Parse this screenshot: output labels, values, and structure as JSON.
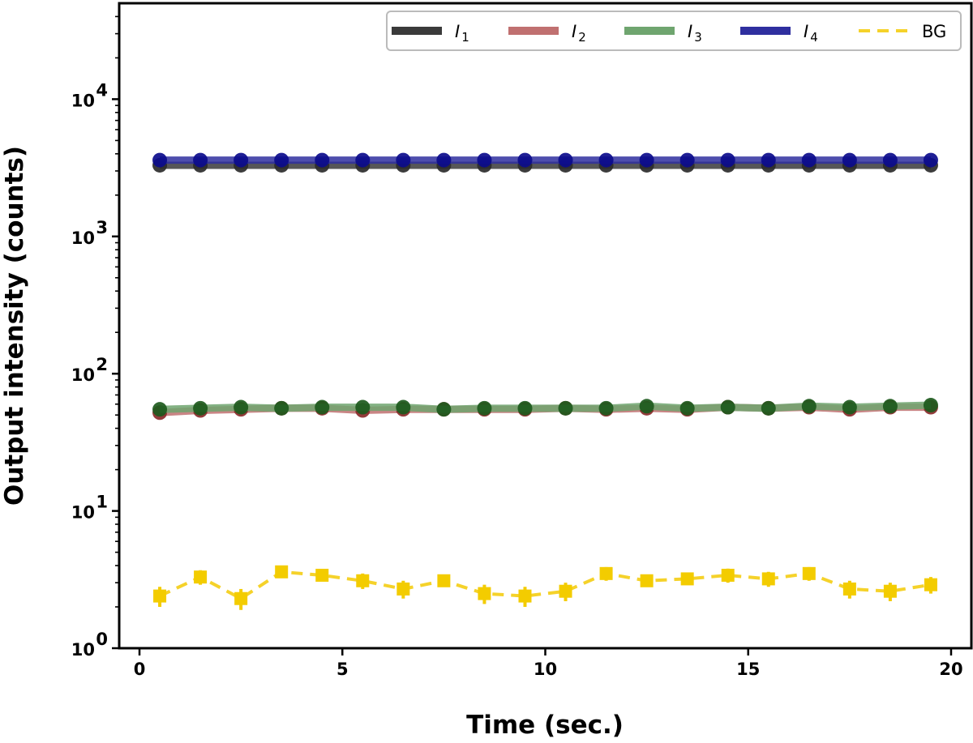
{
  "chart_data": {
    "type": "line",
    "title": "",
    "xlabel": "Time (sec.)",
    "ylabel": "Output intensity (counts)",
    "xlim": [
      -0.5,
      20.5
    ],
    "ylim": [
      1,
      50000
    ],
    "yscale": "log",
    "x_ticks": [
      "0",
      "5",
      "10",
      "15",
      "20"
    ],
    "y_ticks": [
      {
        "base": "10",
        "exp": "0"
      },
      {
        "base": "10",
        "exp": "1"
      },
      {
        "base": "10",
        "exp": "2"
      },
      {
        "base": "10",
        "exp": "3"
      },
      {
        "base": "10",
        "exp": "4"
      }
    ],
    "x": [
      0.5,
      1.5,
      2.5,
      3.5,
      4.5,
      5.5,
      6.5,
      7.5,
      8.5,
      9.5,
      10.5,
      11.5,
      12.5,
      13.5,
      14.5,
      15.5,
      16.5,
      17.5,
      18.5,
      19.5
    ],
    "legend_position": "top-right",
    "series": [
      {
        "name": "I",
        "sub": "1",
        "color": "#3a3a3a",
        "marker_color": "#2b2b2b",
        "dashed": false,
        "values": [
          3300,
          3300,
          3300,
          3300,
          3300,
          3300,
          3300,
          3300,
          3300,
          3300,
          3300,
          3300,
          3300,
          3300,
          3300,
          3300,
          3300,
          3300,
          3300,
          3300
        ]
      },
      {
        "name": "I",
        "sub": "2",
        "color": "#c07070",
        "marker_color": "#8a2a2a",
        "dashed": false,
        "values": [
          52,
          54,
          55,
          56,
          56,
          54,
          55,
          55,
          55,
          55,
          56,
          55,
          56,
          55,
          57,
          56,
          57,
          55,
          57,
          57
        ]
      },
      {
        "name": "I",
        "sub": "3",
        "color": "#6fa56f",
        "marker_color": "#1d5a1d",
        "dashed": false,
        "values": [
          55,
          56,
          57,
          56,
          57,
          57,
          57,
          55,
          56,
          56,
          56,
          56,
          58,
          56,
          57,
          56,
          58,
          57,
          58,
          59
        ]
      },
      {
        "name": "I",
        "sub": "4",
        "color": "#2f2f9f",
        "marker_color": "#0c0c8c",
        "dashed": false,
        "values": [
          3600,
          3600,
          3600,
          3600,
          3600,
          3600,
          3600,
          3600,
          3600,
          3600,
          3600,
          3600,
          3600,
          3600,
          3600,
          3600,
          3600,
          3600,
          3600,
          3600
        ]
      },
      {
        "name": "BG",
        "sub": "",
        "color": "#f5d22a",
        "marker_color": "#f3cc00",
        "dashed": true,
        "values": [
          2.4,
          3.3,
          2.3,
          3.6,
          3.4,
          3.1,
          2.7,
          3.1,
          2.5,
          2.4,
          2.6,
          3.5,
          3.1,
          3.2,
          3.4,
          3.2,
          3.5,
          2.7,
          2.6,
          2.9
        ],
        "errors": [
          0.4,
          0.4,
          0.4,
          0.3,
          0.3,
          0.4,
          0.4,
          0.3,
          0.4,
          0.4,
          0.4,
          0.4,
          0.3,
          0.3,
          0.4,
          0.4,
          0.4,
          0.4,
          0.4,
          0.4
        ]
      }
    ]
  }
}
